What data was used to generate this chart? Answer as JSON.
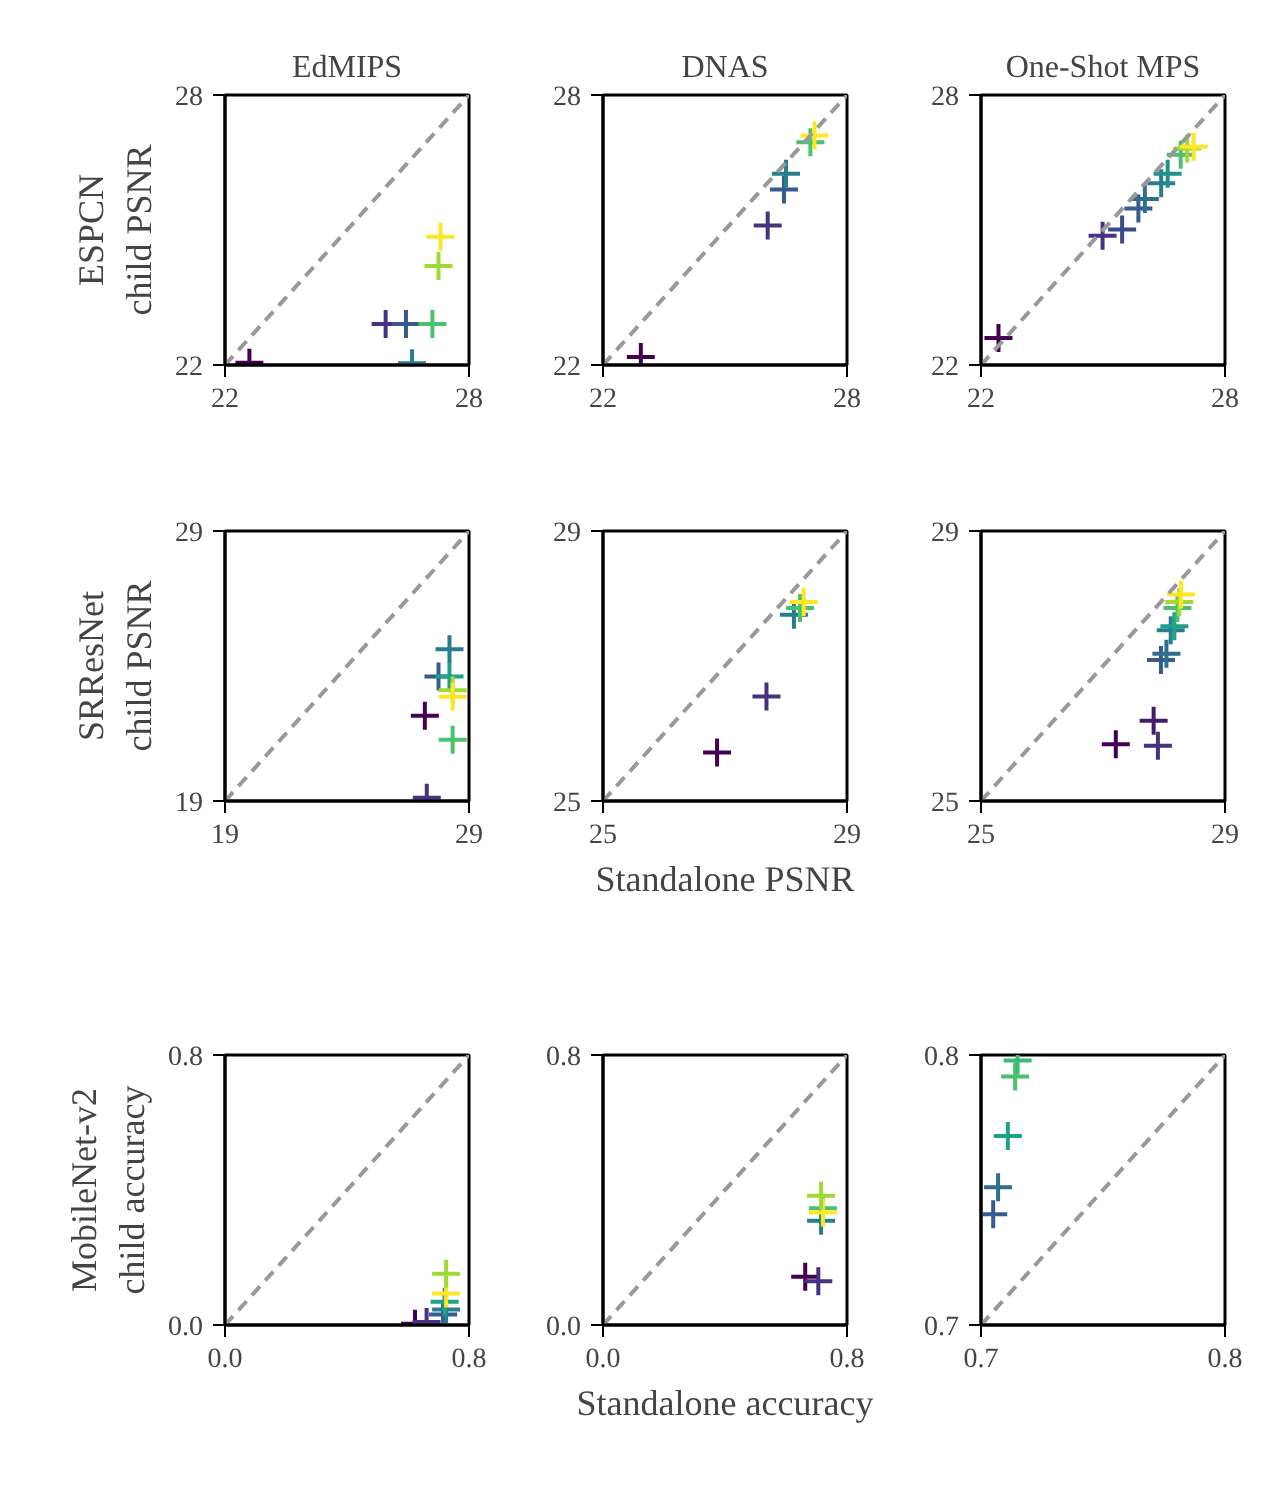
{
  "chart_data": [
    {
      "type": "scatter",
      "title": "EdMIPS",
      "ylabel": "ESPCN\nchild PSNR",
      "xlim": [
        22,
        28
      ],
      "ylim": [
        22,
        28
      ],
      "xticks": [
        22,
        28
      ],
      "yticks": [
        22,
        28
      ],
      "series": [
        {
          "marker": "cross",
          "x": [
            22.6,
            25.95,
            26.45,
            26.6,
            27.1,
            27.25,
            27.3
          ],
          "values": [
            22.05,
            22.91,
            22.91,
            22.04,
            22.91,
            24.2,
            24.85
          ],
          "colors": [
            "#440154",
            "#46327e",
            "#365c8d",
            "#277f8e",
            "#4ac16d",
            "#a0da39",
            "#fde725"
          ]
        },
        {
          "type": "line",
          "x": [
            22,
            28
          ],
          "values": [
            22,
            28
          ],
          "color": "#999999",
          "line_style": "dashed"
        }
      ]
    },
    {
      "type": "scatter",
      "title": "DNAS",
      "xlim": [
        22,
        28
      ],
      "ylim": [
        22,
        28
      ],
      "xticks": [
        22,
        28
      ],
      "yticks": [
        22,
        28
      ],
      "series": [
        {
          "marker": "cross",
          "x": [
            22.93,
            26.05,
            26.45,
            26.5,
            27.1,
            27.2
          ],
          "values": [
            22.18,
            25.1,
            25.9,
            26.25,
            26.95,
            27.1
          ],
          "colors": [
            "#440154",
            "#46327e",
            "#365c8d",
            "#277f8e",
            "#4ac16d",
            "#fde725"
          ]
        },
        {
          "type": "line",
          "x": [
            22,
            28
          ],
          "values": [
            22,
            28
          ],
          "color": "#999999",
          "line_style": "dashed"
        }
      ]
    },
    {
      "type": "scatter",
      "title": "One-Shot MPS",
      "xlim": [
        22,
        28
      ],
      "ylim": [
        22,
        28
      ],
      "xticks": [
        22,
        28
      ],
      "yticks": [
        22,
        28
      ],
      "series": [
        {
          "marker": "cross",
          "x": [
            22.43,
            24.99,
            25.47,
            25.87,
            26.03,
            26.43,
            26.59,
            26.91,
            27.07,
            27.23
          ],
          "values": [
            22.6,
            24.87,
            25.01,
            25.48,
            25.69,
            26.04,
            26.25,
            26.67,
            26.81,
            26.85
          ],
          "colors": [
            "#440154",
            "#46327e",
            "#3f4889",
            "#365c8d",
            "#2e6f8e",
            "#277f8e",
            "#21918c",
            "#4ac16d",
            "#a0da39",
            "#fde725"
          ]
        },
        {
          "type": "line",
          "x": [
            22,
            28
          ],
          "values": [
            22,
            28
          ],
          "color": "#999999",
          "line_style": "dashed"
        }
      ]
    },
    {
      "type": "scatter",
      "ylabel": "SRResNet\nchild PSNR",
      "xlim": [
        19,
        29
      ],
      "ylim": [
        19,
        29
      ],
      "xticks": [
        19,
        29
      ],
      "yticks": [
        19,
        29
      ],
      "series": [
        {
          "marker": "cross",
          "x": [
            27.19,
            27.27,
            27.75,
            28.2,
            28.2,
            28.33,
            28.33,
            28.33
          ],
          "values": [
            22.16,
            19.12,
            23.61,
            24.62,
            23.61,
            21.27,
            23.1,
            22.86
          ],
          "colors": [
            "#440154",
            "#46327e",
            "#365c8d",
            "#277f8e",
            "#1fa187",
            "#4ac16d",
            "#a0da39",
            "#fde725"
          ]
        },
        {
          "type": "line",
          "x": [
            19,
            29
          ],
          "values": [
            19,
            29
          ],
          "color": "#999999",
          "line_style": "dashed"
        }
      ]
    },
    {
      "type": "scatter",
      "xlabel": "Standalone PSNR",
      "xlim": [
        25,
        29
      ],
      "ylim": [
        25,
        29
      ],
      "xticks": [
        25,
        29
      ],
      "yticks": [
        25,
        29
      ],
      "series": [
        {
          "marker": "cross",
          "x": [
            26.87,
            27.68,
            28.13,
            28.23,
            28.29
          ],
          "values": [
            25.72,
            26.55,
            27.76,
            27.86,
            27.95
          ],
          "colors": [
            "#440154",
            "#46327e",
            "#277f8e",
            "#4ac16d",
            "#fde725"
          ]
        },
        {
          "type": "line",
          "x": [
            25,
            29
          ],
          "values": [
            25,
            29
          ],
          "color": "#999999",
          "line_style": "dashed"
        }
      ]
    },
    {
      "type": "scatter",
      "xlim": [
        25,
        29
      ],
      "ylim": [
        25,
        29
      ],
      "xticks": [
        25,
        29
      ],
      "yticks": [
        25,
        29
      ],
      "series": [
        {
          "marker": "cross",
          "x": [
            27.21,
            27.83,
            27.9,
            27.95,
            28.04,
            28.11,
            28.17,
            28.22,
            28.25,
            28.28
          ],
          "values": [
            25.84,
            26.19,
            25.82,
            27.09,
            27.18,
            27.53,
            27.59,
            27.86,
            27.95,
            28.06
          ],
          "colors": [
            "#440154",
            "#481a6c",
            "#46327e",
            "#365c8d",
            "#2e6f8e",
            "#277f8e",
            "#1fa187",
            "#4ac16d",
            "#a0da39",
            "#fde725"
          ]
        },
        {
          "type": "line",
          "x": [
            25,
            29
          ],
          "values": [
            25,
            29
          ],
          "color": "#999999",
          "line_style": "dashed"
        }
      ]
    },
    {
      "type": "scatter",
      "ylabel": "MobileNet-v2\nchild accuracy",
      "xlim": [
        0,
        0.8
      ],
      "ylim": [
        0,
        0.8
      ],
      "xticks": [
        {
          "value": 0,
          "label": "0.0"
        },
        0.8
      ],
      "yticks": [
        {
          "value": 0,
          "label": "0.0"
        },
        0.8
      ],
      "series": [
        {
          "marker": "cross",
          "x": [
            0.623,
            0.661,
            0.715,
            0.725,
            0.72,
            0.725,
            0.725
          ],
          "values": [
            0.004,
            0.009,
            0.031,
            0.046,
            0.069,
            0.093,
            0.152
          ],
          "colors": [
            "#440154",
            "#46327e",
            "#365c8d",
            "#277f8e",
            "#1fa187",
            "#fde725",
            "#a0da39"
          ]
        },
        {
          "type": "line",
          "x": [
            0,
            0.8
          ],
          "values": [
            0,
            0.8
          ],
          "color": "#999999",
          "line_style": "dashed"
        }
      ]
    },
    {
      "type": "scatter",
      "xlabel": "Standalone accuracy",
      "xlim": [
        0,
        0.8
      ],
      "ylim": [
        0,
        0.8
      ],
      "xticks": [
        {
          "value": 0,
          "label": "0.0"
        },
        0.8
      ],
      "yticks": [
        {
          "value": 0,
          "label": "0.0"
        },
        0.8
      ],
      "series": [
        {
          "marker": "cross",
          "x": [
            0.663,
            0.706,
            0.715,
            0.721,
            0.721,
            0.715
          ],
          "values": [
            0.143,
            0.13,
            0.309,
            0.346,
            0.333,
            0.383
          ],
          "colors": [
            "#440154",
            "#46327e",
            "#277f8e",
            "#4ac16d",
            "#fde725",
            "#a0da39"
          ]
        },
        {
          "type": "line",
          "x": [
            0,
            0.8
          ],
          "values": [
            0,
            0.8
          ],
          "color": "#999999",
          "line_style": "dashed"
        }
      ]
    },
    {
      "type": "scatter",
      "xlim": [
        0.7,
        0.8
      ],
      "ylim": [
        0.7,
        0.8
      ],
      "xticks": [
        0.7,
        0.8
      ],
      "yticks": [
        0.7,
        0.8
      ],
      "series": [
        {
          "marker": "cross",
          "x": [
            0.705,
            0.707,
            0.711,
            0.714,
            0.715
          ],
          "values": [
            0.741,
            0.751,
            0.77,
            0.792,
            0.798
          ],
          "colors": [
            "#365c8d",
            "#2e6f8e",
            "#1fa187",
            "#4ac16d",
            "#3bbb75"
          ]
        },
        {
          "type": "line",
          "x": [
            0.7,
            0.8
          ],
          "values": [
            0.7,
            0.8
          ],
          "color": "#999999",
          "line_style": "dashed"
        }
      ]
    }
  ]
}
